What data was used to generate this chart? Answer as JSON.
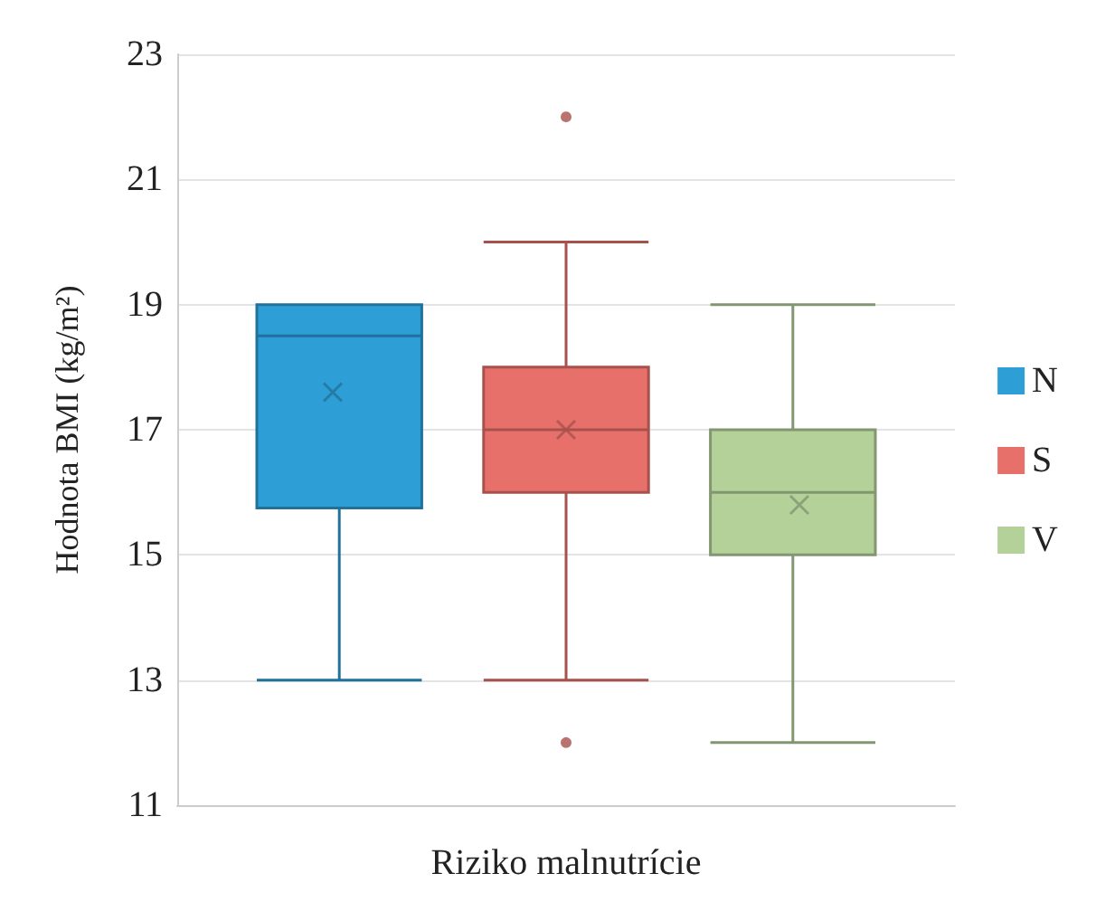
{
  "chart_data": {
    "type": "box",
    "categories": [
      "Riziko malnutrície"
    ],
    "ylabel": "Hodnota BMI (kg/m²)",
    "ylim": [
      11,
      23
    ],
    "yticks": [
      11,
      13,
      15,
      17,
      19,
      21,
      23
    ],
    "grid": "y",
    "legend": "right",
    "series": [
      {
        "name": "N",
        "color": "#2e9fd6",
        "boxes": [
          {
            "low": 13,
            "q1": 15.75,
            "median": 18.5,
            "q3": 19,
            "high": 19,
            "mean": 17.6
          }
        ]
      },
      {
        "name": "S",
        "color": "#e8706a",
        "boxes": [
          {
            "low": 13,
            "q1": 16,
            "median": 17,
            "q3": 18,
            "high": 20,
            "mean": 17,
            "outliers": [
              22,
              12
            ]
          }
        ]
      },
      {
        "name": "V",
        "color": "#b5d19a",
        "boxes": [
          {
            "low": 12,
            "q1": 15,
            "median": 16,
            "q3": 17,
            "high": 19,
            "mean": 15.8
          }
        ]
      }
    ]
  }
}
